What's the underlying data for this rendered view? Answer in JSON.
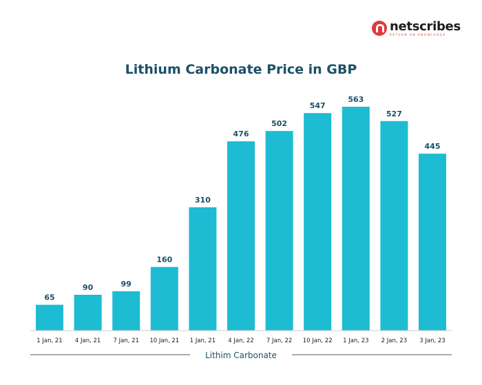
{
  "brand": {
    "name": "netscribes",
    "tagline": "RETURN ON KNOWLEDGE",
    "color": "#e03a3c"
  },
  "chart_data": {
    "type": "bar",
    "title": "Lithium Carbonate Price in GBP",
    "xlabel": "Lithim Carbonate",
    "ylabel": "",
    "categories": [
      "1 Jan, 21",
      "4 Jan, 21",
      "7 Jan, 21",
      "10 Jan, 21",
      "1 Jan, 21",
      "4 Jan, 22",
      "7 Jan, 22",
      "10 Jan, 22",
      "1 Jan, 23",
      "2 Jan, 23",
      "3 Jan, 23"
    ],
    "values": [
      65,
      90,
      99,
      160,
      310,
      476,
      502,
      547,
      563,
      527,
      445
    ],
    "value_labels": [
      "65",
      "90",
      "99",
      "160",
      "310",
      "476",
      "502",
      "547",
      "563",
      "527",
      "445"
    ],
    "ylim": [
      0,
      563
    ],
    "grid": false,
    "legend": "none",
    "bar_color": "#1dbcd3",
    "label_color": "#1b4f66"
  }
}
